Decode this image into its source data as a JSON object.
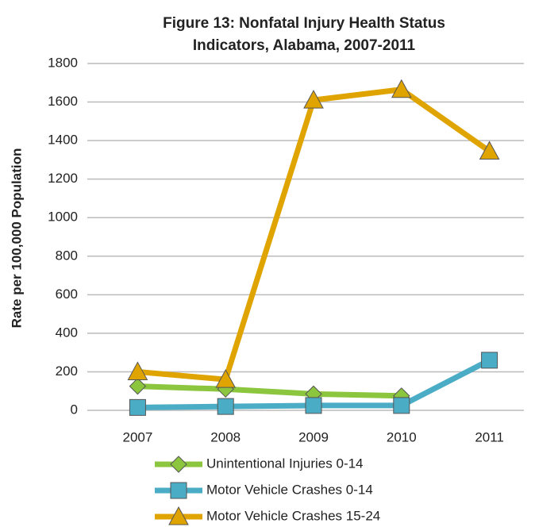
{
  "chart_data": {
    "type": "line",
    "title": [
      "Figure 13: Nonfatal Injury Health Status",
      "Indicators, Alabama, 2007-2011"
    ],
    "y_label": "Rate per 100,000 Population",
    "categories": [
      "2007",
      "2008",
      "2009",
      "2010",
      "2011"
    ],
    "series": [
      {
        "name": "Unintentional Injuries 0-14",
        "color": "#8cc63e",
        "marker": "diamond",
        "values": [
          125,
          110,
          85,
          75,
          null
        ]
      },
      {
        "name": "Motor Vehicle Crashes 0-14",
        "color": "#4bacc6",
        "marker": "square",
        "values": [
          15,
          20,
          25,
          25,
          260
        ]
      },
      {
        "name": "Motor Vehicle Crashes 15-24",
        "color": "#e0a400",
        "marker": "triangle",
        "values": [
          200,
          160,
          1610,
          1665,
          1345
        ]
      }
    ],
    "ylim": [
      0,
      1800
    ],
    "yticks": [
      0,
      200,
      400,
      600,
      800,
      1000,
      1200,
      1400,
      1600,
      1800
    ],
    "grid": true,
    "legend": "bottom"
  }
}
